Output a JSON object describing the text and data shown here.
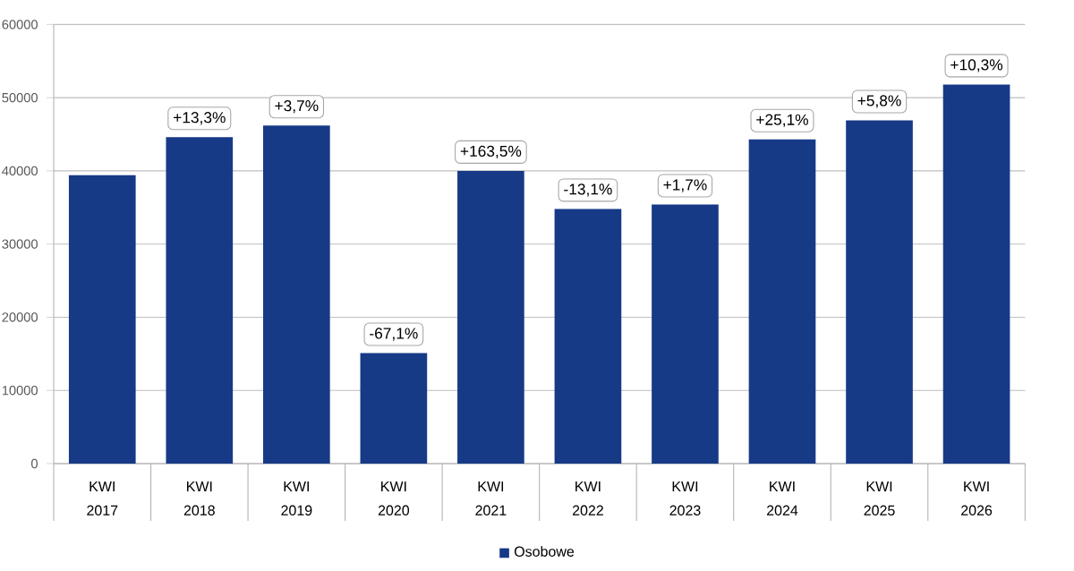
{
  "chart_data": {
    "type": "bar",
    "categories": [
      "KWI 2017",
      "KWI 2018",
      "KWI 2019",
      "KWI 2020",
      "KWI 2021",
      "KWI 2022",
      "KWI 2023",
      "KWI 2024",
      "KWI 2025",
      "KWI 2026"
    ],
    "series": [
      {
        "name": "Osobowe",
        "color": "#173a87",
        "values": [
          39400,
          44600,
          46200,
          15100,
          40000,
          34800,
          35400,
          44300,
          46900,
          51800
        ]
      }
    ],
    "annotations": [
      {
        "text": "+13,3%",
        "x": "KWI 2018",
        "y": 44600
      },
      {
        "text": "+3,7%",
        "x": "KWI 2019",
        "y": 46200
      },
      {
        "text": "-67,1%",
        "x": "KWI 2020",
        "y": 15100
      },
      {
        "text": "+163,5%",
        "x": "KWI 2021",
        "y": 40000
      },
      {
        "text": "-13,1%",
        "x": "KWI 2022",
        "y": 34800
      },
      {
        "text": "+1,7%",
        "x": "KWI 2023",
        "y": 35400
      },
      {
        "text": "+25,1%",
        "x": "KWI 2024",
        "y": 44300
      },
      {
        "text": "+5,8%",
        "x": "KWI 2025",
        "y": 46900
      },
      {
        "text": "+10,3%",
        "x": "KWI 2026",
        "y": 51800
      }
    ],
    "ylim": [
      0,
      60000
    ],
    "yticks": [
      0,
      10000,
      20000,
      30000,
      40000,
      50000,
      60000
    ],
    "grid": "y",
    "legend": "bottom"
  }
}
